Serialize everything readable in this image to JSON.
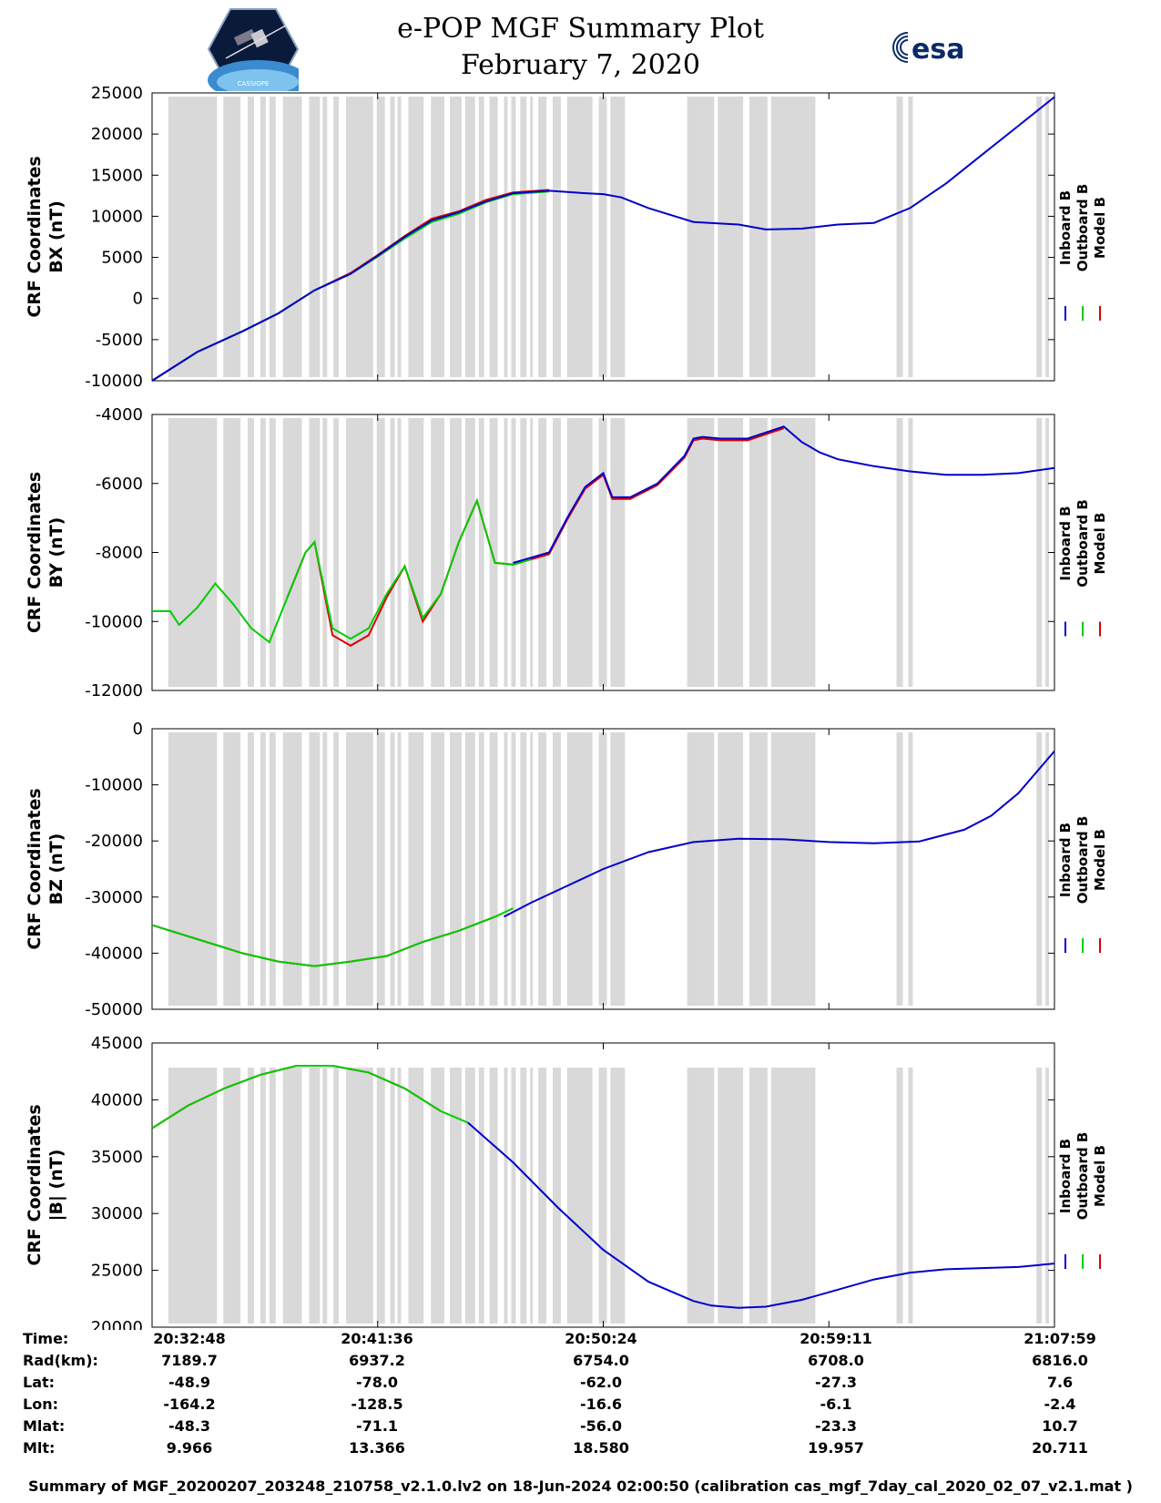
{
  "header": {
    "title_line1": "e-POP MGF Summary Plot",
    "title_line2": "February 7, 2020",
    "left_logo_caption": "CASSIOPE",
    "right_logo_text": "esa"
  },
  "colors": {
    "inboard": "#0000cc",
    "outboard": "#00cc00",
    "model": "#dd0000",
    "gap_shading": "#d9d9d9"
  },
  "chart_data": [
    {
      "type": "line",
      "ylabel_line1": "CRF Coordinates",
      "ylabel_line2": "BX (nT)",
      "ylim": [
        -10000,
        25000
      ],
      "yticks": [
        "25000",
        "20000",
        "15000",
        "10000",
        "5000",
        "0",
        "-5000",
        "-10000"
      ],
      "ytick_values": [
        25000,
        20000,
        15000,
        10000,
        5000,
        0,
        -5000,
        -10000
      ],
      "legend": [
        "Inboard B",
        "Outboard B",
        "Model B"
      ],
      "series": [
        {
          "name": "Inboard B",
          "x": [
            0,
            0.05,
            0.1,
            0.14,
            0.18,
            0.22,
            0.25,
            0.28,
            0.31,
            0.34,
            0.37,
            0.4,
            0.44,
            0.48,
            0.5,
            0.52,
            0.55,
            0.6,
            0.65,
            0.68,
            0.72,
            0.76,
            0.8,
            0.84,
            0.88,
            0.92,
            0.96,
            1.0
          ],
          "y": [
            -10000,
            -6500,
            -4000,
            -1800,
            1000,
            3000,
            5200,
            7500,
            9500,
            10500,
            11800,
            12800,
            13100,
            12800,
            12700,
            12300,
            11000,
            9300,
            9000,
            8400,
            8500,
            9000,
            9200,
            11000,
            14000,
            17500,
            21000,
            24500
          ]
        },
        {
          "name": "Outboard B",
          "x": [
            0,
            0.05,
            0.1,
            0.14,
            0.18,
            0.22,
            0.25,
            0.28,
            0.31,
            0.34,
            0.37,
            0.4,
            0.44
          ],
          "y": [
            -10000,
            -6500,
            -4000,
            -1800,
            1000,
            3000,
            5100,
            7300,
            9300,
            10300,
            11700,
            12700,
            13000
          ]
        },
        {
          "name": "Model B",
          "x": [
            0,
            0.05,
            0.1,
            0.14,
            0.18,
            0.22,
            0.25,
            0.28,
            0.31,
            0.34,
            0.37,
            0.4,
            0.44
          ],
          "y": [
            -10000,
            -6500,
            -4000,
            -1800,
            1000,
            3100,
            5300,
            7600,
            9700,
            10600,
            12000,
            12900,
            13200
          ]
        }
      ]
    },
    {
      "type": "line",
      "ylabel_line1": "CRF Coordinates",
      "ylabel_line2": "BY (nT)",
      "ylim": [
        -12000,
        -4000
      ],
      "yticks": [
        "-4000",
        "-6000",
        "-8000",
        "-10000",
        "-12000"
      ],
      "ytick_values": [
        -4000,
        -6000,
        -8000,
        -10000,
        -12000
      ],
      "legend": [
        "Inboard B",
        "Outboard B",
        "Model B"
      ],
      "series": [
        {
          "name": "Inboard B",
          "x": [
            0.4,
            0.42,
            0.44,
            0.46,
            0.48,
            0.5,
            0.51,
            0.53,
            0.56,
            0.59,
            0.6,
            0.61,
            0.63,
            0.66,
            0.7,
            0.72,
            0.74,
            0.76,
            0.78,
            0.8,
            0.84,
            0.88,
            0.92,
            0.96,
            1.0
          ],
          "y": [
            -8300,
            -8150,
            -8000,
            -7000,
            -6100,
            -5700,
            -6400,
            -6400,
            -6000,
            -5200,
            -4700,
            -4650,
            -4700,
            -4700,
            -4350,
            -4800,
            -5100,
            -5300,
            -5400,
            -5500,
            -5650,
            -5750,
            -5750,
            -5700,
            -5550
          ]
        },
        {
          "name": "Outboard B",
          "x": [
            0,
            0.02,
            0.03,
            0.05,
            0.07,
            0.09,
            0.11,
            0.13,
            0.15,
            0.17,
            0.18,
            0.2,
            0.22,
            0.24,
            0.26,
            0.28,
            0.3,
            0.32,
            0.34,
            0.36,
            0.38,
            0.4,
            0.42
          ],
          "y": [
            -9700,
            -9700,
            -10100,
            -9600,
            -8900,
            -9500,
            -10200,
            -10600,
            -9300,
            -8000,
            -7700,
            -10200,
            -10500,
            -10200,
            -9200,
            -8400,
            -9900,
            -9200,
            -7700,
            -6500,
            -8300,
            -8350,
            -8200
          ]
        },
        {
          "name": "Model B",
          "x": [
            0.15,
            0.17,
            0.18,
            0.2,
            0.22,
            0.24,
            0.26,
            0.28,
            0.3,
            0.32,
            0.34,
            0.36,
            0.38,
            0.4,
            0.42,
            0.44,
            0.46,
            0.48,
            0.5,
            0.51,
            0.53,
            0.56,
            0.59,
            0.6,
            0.61,
            0.63,
            0.66,
            0.7
          ],
          "y": [
            -9300,
            -8000,
            -7700,
            -10400,
            -10700,
            -10400,
            -9300,
            -8400,
            -10000,
            -9200,
            -7700,
            -6500,
            -8300,
            -8350,
            -8200,
            -8050,
            -7050,
            -6150,
            -5750,
            -6450,
            -6450,
            -6050,
            -5250,
            -4750,
            -4700,
            -4750,
            -4750,
            -4400
          ]
        }
      ]
    },
    {
      "type": "line",
      "ylabel_line1": "CRF Coordinates",
      "ylabel_line2": "BZ (nT)",
      "ylim": [
        -50000,
        0
      ],
      "yticks": [
        "0",
        "-10000",
        "-20000",
        "-30000",
        "-40000",
        "-50000"
      ],
      "ytick_values": [
        0,
        -10000,
        -20000,
        -30000,
        -40000,
        -50000
      ],
      "legend": [
        "Inboard B",
        "Outboard B",
        "Model B"
      ],
      "series": [
        {
          "name": "Inboard B",
          "x": [
            0.39,
            0.42,
            0.46,
            0.5,
            0.55,
            0.6,
            0.65,
            0.7,
            0.75,
            0.8,
            0.85,
            0.9,
            0.93,
            0.96,
            1.0
          ],
          "y": [
            -33500,
            -31000,
            -28000,
            -25000,
            -22000,
            -20200,
            -19600,
            -19700,
            -20200,
            -20400,
            -20100,
            -18000,
            -15500,
            -11500,
            -4000
          ]
        },
        {
          "name": "Outboard B",
          "x": [
            0,
            0.05,
            0.1,
            0.14,
            0.18,
            0.22,
            0.26,
            0.3,
            0.34,
            0.38,
            0.4
          ],
          "y": [
            -35000,
            -37500,
            -40000,
            -41500,
            -42300,
            -41500,
            -40500,
            -38000,
            -36000,
            -33500,
            -32000
          ]
        },
        {
          "name": "Model B",
          "x": [
            0,
            0.05,
            0.1,
            0.14,
            0.18,
            0.22,
            0.26,
            0.3,
            0.34,
            0.38
          ],
          "y": [
            -35000,
            -37500,
            -40000,
            -41500,
            -42300,
            -41500,
            -40500,
            -38000,
            -36000,
            -33500
          ]
        }
      ]
    },
    {
      "type": "line",
      "ylabel_line1": "CRF Coordinates",
      "ylabel_line2": "|B| (nT)",
      "ylim": [
        20000,
        45000
      ],
      "yticks": [
        "45000",
        "40000",
        "35000",
        "30000",
        "25000",
        "20000"
      ],
      "ytick_values": [
        45000,
        40000,
        35000,
        30000,
        25000,
        20000
      ],
      "legend": [
        "Inboard B",
        "Outboard B",
        "Model B"
      ],
      "series": [
        {
          "name": "Inboard B",
          "x": [
            0.35,
            0.4,
            0.45,
            0.5,
            0.55,
            0.6,
            0.62,
            0.65,
            0.68,
            0.72,
            0.76,
            0.8,
            0.84,
            0.88,
            0.92,
            0.96,
            1.0
          ],
          "y": [
            38000,
            34500,
            30500,
            26800,
            24000,
            22300,
            21900,
            21700,
            21800,
            22400,
            23300,
            24200,
            24800,
            25100,
            25200,
            25300,
            25600
          ]
        },
        {
          "name": "Outboard B",
          "x": [
            0,
            0.04,
            0.08,
            0.12,
            0.16,
            0.2,
            0.24,
            0.28,
            0.32,
            0.35
          ],
          "y": [
            37500,
            39500,
            41000,
            42200,
            43000,
            43000,
            42400,
            41000,
            39000,
            38000
          ]
        },
        {
          "name": "Model B",
          "x": [
            0,
            0.04,
            0.08,
            0.12,
            0.16,
            0.2,
            0.24,
            0.28,
            0.32
          ],
          "y": [
            37500,
            39500,
            41000,
            42200,
            43000,
            43000,
            42400,
            41000,
            39000
          ]
        }
      ]
    }
  ],
  "gap_intervals": [
    [
      0.018,
      0.072
    ],
    [
      0.079,
      0.098
    ],
    [
      0.106,
      0.113
    ],
    [
      0.12,
      0.126
    ],
    [
      0.13,
      0.137
    ],
    [
      0.145,
      0.166
    ],
    [
      0.174,
      0.186
    ],
    [
      0.189,
      0.194
    ],
    [
      0.201,
      0.207
    ],
    [
      0.215,
      0.245
    ],
    [
      0.249,
      0.258
    ],
    [
      0.264,
      0.269
    ],
    [
      0.272,
      0.276
    ],
    [
      0.284,
      0.301
    ],
    [
      0.309,
      0.324
    ],
    [
      0.33,
      0.343
    ],
    [
      0.347,
      0.358
    ],
    [
      0.362,
      0.368
    ],
    [
      0.374,
      0.383
    ],
    [
      0.39,
      0.394
    ],
    [
      0.398,
      0.403
    ],
    [
      0.408,
      0.415
    ],
    [
      0.419,
      0.422
    ],
    [
      0.428,
      0.437
    ],
    [
      0.444,
      0.453
    ],
    [
      0.46,
      0.488
    ],
    [
      0.495,
      0.504
    ],
    [
      0.508,
      0.524
    ],
    [
      0.593,
      0.623
    ],
    [
      0.627,
      0.655
    ],
    [
      0.662,
      0.682
    ],
    [
      0.686,
      0.735
    ],
    [
      0.825,
      0.832
    ],
    [
      0.838,
      0.843
    ],
    [
      0.98,
      0.986
    ],
    [
      0.99,
      0.994
    ]
  ],
  "x_axis": {
    "tick_positions": [
      0,
      0.25,
      0.5,
      0.75,
      1.0
    ]
  },
  "info_table": {
    "rows": [
      {
        "label": "Time:",
        "values": [
          "20:32:48",
          "20:41:36",
          "20:50:24",
          "20:59:11",
          "21:07:59"
        ]
      },
      {
        "label": "Rad(km):",
        "values": [
          "7189.7",
          "6937.2",
          "6754.0",
          "6708.0",
          "6816.0"
        ]
      },
      {
        "label": "Lat:",
        "values": [
          "-48.9",
          "-78.0",
          "-62.0",
          "-27.3",
          "7.6"
        ]
      },
      {
        "label": "Lon:",
        "values": [
          "-164.2",
          "-128.5",
          "-16.6",
          "-6.1",
          "-2.4"
        ]
      },
      {
        "label": "Mlat:",
        "values": [
          "-48.3",
          "-71.1",
          "-56.0",
          "-23.3",
          "10.7"
        ]
      },
      {
        "label": "Mlt:",
        "values": [
          "9.966",
          "13.366",
          "18.580",
          "19.957",
          "20.711"
        ]
      }
    ]
  },
  "footer": {
    "text": "Summary of MGF_20200207_203248_210758_v2.1.0.lv2 on 18-Jun-2024 02:00:50 (calibration cas_mgf_7day_cal_2020_02_07_v2.1.mat )"
  }
}
